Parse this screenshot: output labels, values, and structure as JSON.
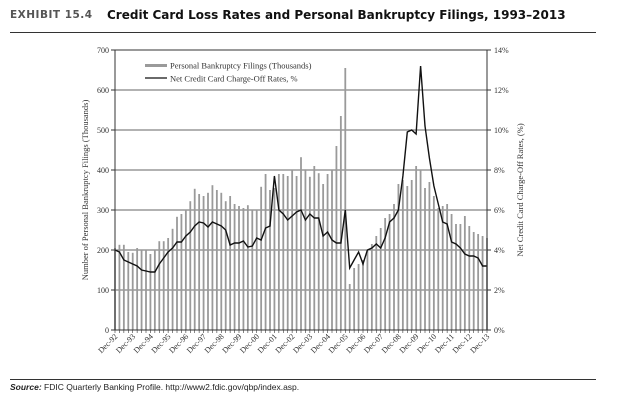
{
  "exhibit": "EXHIBIT 15.4",
  "title": "Credit Card Loss Rates and Personal Bankruptcy Filings, 1993–2013",
  "source_label": "Source:",
  "source_text": "FDIC Quarterly Banking Profile. http://www2.fdic.gov/qbp/index.asp.",
  "chart_data": {
    "type": "bar+line",
    "title": "Credit Card Loss Rates and Personal Bankruptcy Filings, 1993–2013",
    "ylabel": "Number of Personal Bankruptcy Filings (Thousands)",
    "y2label": "Net Credit Card Charge-Off Rates, (%)",
    "ylim": [
      0,
      700
    ],
    "y2lim": [
      0,
      14
    ],
    "yticks": [
      "0",
      "100",
      "200",
      "300",
      "400",
      "500",
      "600",
      "700"
    ],
    "y2ticks": [
      "0%",
      "2%",
      "4%",
      "6%",
      "8%",
      "10%",
      "12%",
      "14%"
    ],
    "xticks": [
      "Dec-92",
      "Dec-93",
      "Dec-94",
      "Dec-95",
      "Dec-96",
      "Dec-97",
      "Dec-98",
      "Dec-99",
      "Dec-00",
      "Dec-01",
      "Dec-02",
      "Dec-03",
      "Dec-04",
      "Dec-05",
      "Dec-06",
      "Dec-07",
      "Dec-08",
      "Dec-09",
      "Dec-10",
      "Dec-11",
      "Dec-12",
      "Dec-13"
    ],
    "x_frequency": "quarterly, Dec-92 to Dec-13",
    "grid": "horizontal",
    "legend_position": "top-left",
    "series": [
      {
        "name": "Personal Bankruptcy Filings (Thousands)",
        "type": "bar",
        "axis": "left",
        "color": "#9a9a9a",
        "values": [
          205,
          213,
          213,
          195,
          193,
          205,
          200,
          200,
          190,
          200,
          222,
          222,
          230,
          253,
          283,
          290,
          300,
          322,
          353,
          340,
          335,
          343,
          362,
          350,
          343,
          322,
          335,
          315,
          310,
          305,
          312,
          300,
          300,
          358,
          390,
          350,
          355,
          390,
          390,
          385,
          400,
          385,
          432,
          402,
          383,
          410,
          392,
          365,
          390,
          400,
          460,
          535,
          655,
          115,
          155,
          165,
          175,
          200,
          215,
          235,
          255,
          280,
          290,
          315,
          365,
          375,
          360,
          375,
          410,
          400,
          355,
          370,
          335,
          305,
          310,
          315,
          290,
          265,
          265,
          285,
          260,
          245,
          240,
          235,
          230
        ]
      },
      {
        "name": "Net Credit Card Charge-Off Rates, %",
        "type": "line",
        "axis": "right",
        "color": "#111111",
        "values": [
          4.0,
          3.9,
          3.5,
          3.4,
          3.3,
          3.2,
          3.0,
          2.95,
          2.9,
          2.9,
          3.3,
          3.6,
          3.9,
          4.1,
          4.4,
          4.4,
          4.7,
          4.9,
          5.2,
          5.4,
          5.35,
          5.15,
          5.4,
          5.3,
          5.2,
          5.0,
          4.25,
          4.35,
          4.35,
          4.45,
          4.15,
          4.2,
          4.6,
          4.5,
          5.1,
          5.2,
          7.7,
          6.0,
          5.8,
          5.5,
          5.7,
          5.9,
          6.0,
          5.5,
          5.8,
          5.6,
          5.6,
          4.7,
          4.9,
          4.5,
          4.35,
          4.35,
          6.0,
          3.1,
          3.5,
          3.9,
          3.3,
          4.0,
          4.1,
          4.3,
          4.1,
          4.6,
          5.4,
          5.6,
          6.0,
          7.7,
          9.9,
          10.0,
          9.8,
          13.2,
          10.2,
          8.6,
          7.2,
          6.3,
          5.4,
          5.3,
          4.4,
          4.3,
          4.1,
          3.8,
          3.7,
          3.7,
          3.6,
          3.2,
          3.2
        ]
      }
    ]
  }
}
